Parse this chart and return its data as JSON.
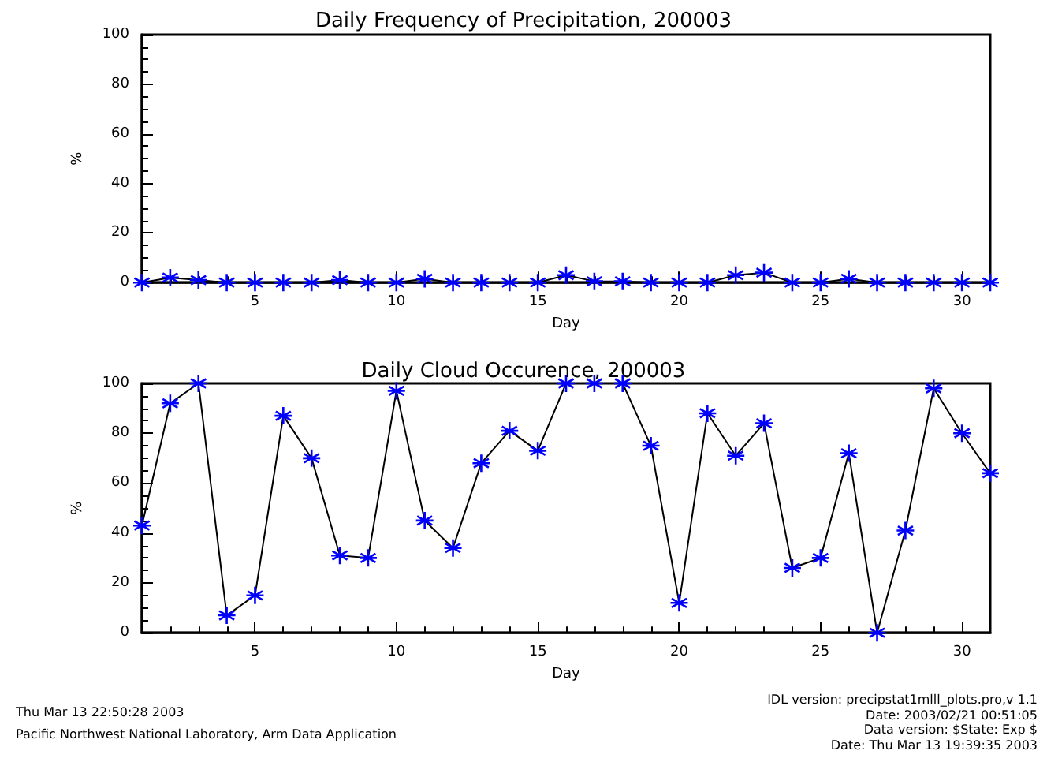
{
  "chart_data": [
    {
      "type": "line",
      "title": "Daily Frequency of Precipitation, 200003",
      "xlabel": "Day",
      "ylabel": "%",
      "x": [
        1,
        2,
        3,
        4,
        5,
        6,
        7,
        8,
        9,
        10,
        11,
        12,
        13,
        14,
        15,
        16,
        17,
        18,
        19,
        20,
        21,
        22,
        23,
        24,
        25,
        26,
        27,
        28,
        29,
        30,
        31
      ],
      "series": [
        {
          "color": "#000000",
          "colors": [
            "#0000ff",
            "#0000ff",
            "#0000ff",
            "#0000ff",
            "#0000ff",
            "#0000ff",
            "#0000ff",
            "#0000ff",
            "#0000ff",
            "#0000ff",
            "#0000ff",
            "#0000ff",
            "#0000ff",
            "#0000ff",
            "#0000ff",
            "#0000ff",
            "#0000ff",
            "#0000ff",
            "#0000ff",
            "#0000ff",
            "#0000ff",
            "#0000ff",
            "#0000ff",
            "#0000ff",
            "#0000ff",
            "#0000ff",
            "#0000ff",
            "#0000ff",
            "#0000ff",
            "#0000ff",
            "#0000ff"
          ],
          "values": [
            0,
            2,
            1,
            0,
            0,
            0,
            0,
            1,
            0,
            0,
            1.5,
            0,
            0,
            0,
            0,
            3,
            0.5,
            0.5,
            0,
            0,
            0,
            3,
            4,
            0,
            0,
            1.5,
            0,
            0,
            0,
            0,
            0
          ]
        }
      ],
      "xlim": [
        1,
        31
      ],
      "xticks": [
        5,
        10,
        15,
        20,
        25,
        30
      ],
      "ylim": [
        0,
        100
      ],
      "yticks": [
        0,
        20,
        40,
        60,
        80,
        100
      ],
      "grid": false,
      "marker": "cross",
      "line_style": "solid"
    },
    {
      "type": "line",
      "title": "Daily Cloud Occurence, 200003",
      "xlabel": "Day",
      "ylabel": "%",
      "x": [
        1,
        2,
        3,
        4,
        5,
        6,
        7,
        8,
        9,
        10,
        11,
        12,
        13,
        14,
        15,
        16,
        17,
        18,
        19,
        20,
        21,
        22,
        23,
        24,
        25,
        26,
        27,
        28,
        29,
        30,
        31
      ],
      "series": [
        {
          "color": "#000000",
          "colors": [
            "#0000ff",
            "#0000ff",
            "#0000ff",
            "#0000ff",
            "#0000ff",
            "#0000ff",
            "#0000ff",
            "#0000ff",
            "#0000ff",
            "#0000ff",
            "#0000ff",
            "#0000ff",
            "#0000ff",
            "#0000ff",
            "#0000ff",
            "#0000ff",
            "#0000ff",
            "#0000ff",
            "#0000ff",
            "#0000ff",
            "#0000ff",
            "#0000ff",
            "#0000ff",
            "#0000ff",
            "#0000ff",
            "#0000ff",
            "#0000ff",
            "#0000ff",
            "#0000ff",
            "#0000ff",
            "#0000ff"
          ],
          "values": [
            43,
            92,
            100,
            7,
            15,
            87,
            70,
            31,
            30,
            97,
            45,
            34,
            68,
            81,
            73,
            100,
            100,
            100,
            75,
            12,
            88,
            71,
            84,
            26,
            30,
            72,
            0,
            41,
            98,
            80,
            64
          ]
        }
      ],
      "xlim": [
        1,
        31
      ],
      "xticks": [
        5,
        10,
        15,
        20,
        25,
        30
      ],
      "ylim": [
        0,
        100
      ],
      "yticks": [
        0,
        20,
        40,
        60,
        80,
        100
      ],
      "grid": false,
      "marker": "cross",
      "line_style": "solid",
      "annotations": [
        "Thu Mar 13 22:50:28 2003",
        "Pacific Northwest National Laboratory, Arm Data Application",
        "IDL version: precipstat1mlll_plots.pro,v 1.1",
        "Date: 2003/02/21 00:51:05",
        "Data version: $State: Exp $",
        "Date: Thu Mar 13 19:39:35 2003"
      ]
    }
  ]
}
